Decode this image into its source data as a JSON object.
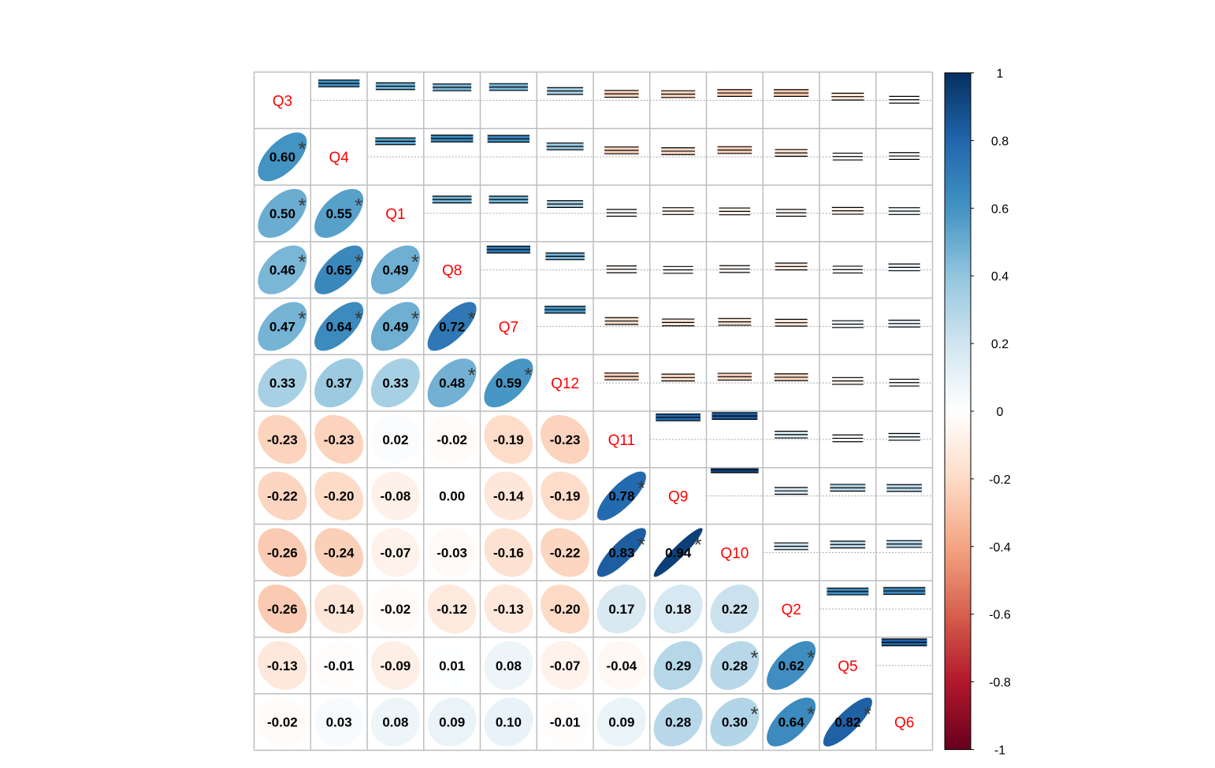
{
  "chart_data": {
    "type": "heatmap",
    "title": "",
    "variables": [
      "Q3",
      "Q4",
      "Q1",
      "Q8",
      "Q7",
      "Q12",
      "Q11",
      "Q9",
      "Q10",
      "Q2",
      "Q5",
      "Q6"
    ],
    "lower_method": "ellipse",
    "upper_method": "confidence-interval-squares",
    "correlations": [
      [
        1.0,
        0.6,
        0.5,
        0.46,
        0.47,
        0.33,
        -0.23,
        -0.22,
        -0.26,
        -0.26,
        -0.13,
        -0.02
      ],
      [
        0.6,
        1.0,
        0.55,
        0.65,
        0.64,
        0.37,
        -0.23,
        -0.2,
        -0.24,
        -0.14,
        -0.01,
        0.03
      ],
      [
        0.5,
        0.55,
        1.0,
        0.49,
        0.49,
        0.33,
        0.02,
        -0.08,
        -0.07,
        -0.02,
        -0.09,
        0.08
      ],
      [
        0.46,
        0.65,
        0.49,
        1.0,
        0.72,
        0.48,
        -0.02,
        0.0,
        -0.03,
        -0.12,
        0.01,
        0.09
      ],
      [
        0.47,
        0.64,
        0.49,
        0.72,
        1.0,
        0.59,
        -0.19,
        -0.14,
        -0.16,
        -0.13,
        0.08,
        0.1
      ],
      [
        0.33,
        0.37,
        0.33,
        0.48,
        0.59,
        1.0,
        -0.23,
        -0.19,
        -0.22,
        -0.2,
        -0.07,
        -0.01
      ],
      [
        -0.23,
        -0.23,
        0.02,
        -0.02,
        -0.19,
        -0.23,
        1.0,
        0.78,
        0.83,
        0.17,
        -0.04,
        0.09
      ],
      [
        -0.22,
        -0.2,
        -0.08,
        0.0,
        -0.14,
        -0.19,
        0.78,
        1.0,
        0.94,
        0.18,
        0.29,
        0.28
      ],
      [
        -0.26,
        -0.24,
        -0.07,
        -0.03,
        -0.16,
        -0.22,
        0.83,
        0.94,
        1.0,
        0.22,
        0.28,
        0.3
      ],
      [
        -0.26,
        -0.14,
        -0.02,
        -0.12,
        -0.13,
        -0.2,
        0.17,
        0.18,
        0.22,
        1.0,
        0.62,
        0.64
      ],
      [
        -0.13,
        -0.01,
        -0.09,
        0.01,
        0.08,
        -0.07,
        -0.04,
        0.29,
        0.28,
        0.62,
        1.0,
        0.82
      ],
      [
        -0.02,
        0.03,
        0.08,
        0.09,
        0.1,
        -0.01,
        0.09,
        0.28,
        0.3,
        0.64,
        0.82,
        1.0
      ]
    ],
    "significant_pairs": [
      [
        0,
        1
      ],
      [
        0,
        2
      ],
      [
        1,
        2
      ],
      [
        0,
        3
      ],
      [
        1,
        3
      ],
      [
        2,
        3
      ],
      [
        0,
        4
      ],
      [
        1,
        4
      ],
      [
        2,
        4
      ],
      [
        3,
        4
      ],
      [
        3,
        5
      ],
      [
        4,
        5
      ],
      [
        6,
        7
      ],
      [
        6,
        8
      ],
      [
        7,
        8
      ],
      [
        8,
        10
      ],
      [
        9,
        10
      ],
      [
        8,
        11
      ],
      [
        9,
        11
      ],
      [
        10,
        11
      ]
    ],
    "significance_marker": "*",
    "colorbar": {
      "ticks": [
        "1",
        "0.8",
        "0.6",
        "0.4",
        "0.2",
        "0",
        "-0.2",
        "-0.4",
        "-0.6",
        "-0.8",
        "-1"
      ],
      "range": [
        -1,
        1
      ],
      "colors": [
        "#67001F",
        "#B2182B",
        "#D6604D",
        "#F4A582",
        "#FDDBC7",
        "#FFFFFF",
        "#D1E5F0",
        "#92C5DE",
        "#4393C3",
        "#2166AC",
        "#053061"
      ]
    },
    "label_color": "#FF0000",
    "grid_color": "#BEBEBE"
  }
}
